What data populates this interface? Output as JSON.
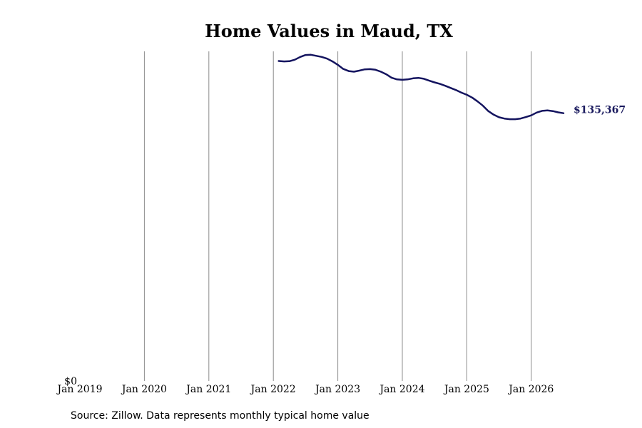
{
  "chart_data": {
    "type": "line",
    "title": "Home Values in Maud, TX",
    "xlabel": "",
    "ylabel": "",
    "x_ticks": [
      "Jan 2019",
      "Jan 2020",
      "Jan 2021",
      "Jan 2022",
      "Jan 2023",
      "Jan 2024",
      "Jan 2025",
      "Jan 2026"
    ],
    "y_ticks": [
      {
        "value": 0,
        "label": "$0"
      }
    ],
    "xlim": [
      "2019-01",
      "2026-07"
    ],
    "ylim": [
      0,
      154000
    ],
    "grid": "vertical",
    "color": "#14145f",
    "end_label": "$135,367",
    "source": "Source: Zillow. Data represents monthly typical home value",
    "series": [
      {
        "name": "",
        "x": [
          "2022-02",
          "2022-03",
          "2022-04",
          "2022-05",
          "2022-06",
          "2022-07",
          "2022-08",
          "2022-09",
          "2022-10",
          "2022-11",
          "2022-12",
          "2023-01",
          "2023-02",
          "2023-03",
          "2023-04",
          "2023-05",
          "2023-06",
          "2023-07",
          "2023-08",
          "2023-09",
          "2023-10",
          "2023-11",
          "2023-12",
          "2024-01",
          "2024-02",
          "2024-03",
          "2024-04",
          "2024-05",
          "2024-06",
          "2024-07",
          "2024-08",
          "2024-09",
          "2024-10",
          "2024-11",
          "2024-12",
          "2025-01",
          "2025-02",
          "2025-03",
          "2025-04",
          "2025-05",
          "2025-06",
          "2025-07",
          "2025-08",
          "2025-09",
          "2025-10",
          "2025-11",
          "2025-12",
          "2026-01",
          "2026-02",
          "2026-03",
          "2026-04",
          "2026-05",
          "2026-06",
          "2026-07"
        ],
        "values": [
          149500,
          149300,
          149400,
          150100,
          151400,
          152300,
          152400,
          151900,
          151400,
          150600,
          149300,
          147700,
          145800,
          144800,
          144500,
          145000,
          145600,
          145700,
          145400,
          144500,
          143300,
          141700,
          140900,
          140700,
          140900,
          141400,
          141600,
          141200,
          140300,
          139500,
          138800,
          137900,
          136900,
          135900,
          134700,
          133700,
          132400,
          130600,
          128600,
          126100,
          124400,
          123200,
          122600,
          122300,
          122300,
          122600,
          123300,
          124100,
          125400,
          126200,
          126400,
          126100,
          125500,
          135367
        ]
      }
    ]
  }
}
